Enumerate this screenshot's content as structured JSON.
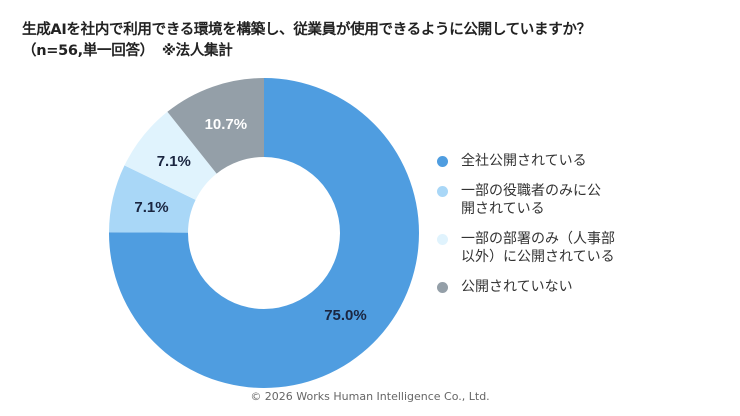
{
  "title": {
    "line1": "生成AIを社内で利用できる環境を構築し、従業員が使用できるように公開していますか？",
    "line2a": "（n=56,単一回答）",
    "line2b": "※法人集計"
  },
  "chart_data": {
    "type": "pie",
    "donut": true,
    "start": "top, clockwise",
    "legend_position": "right",
    "series": [
      {
        "name": "全社公開されている",
        "value": 75.0,
        "label": "75.0%",
        "color": "#4f9de0",
        "label_color": "#1a2540"
      },
      {
        "name": "一部の役職者のみに公開されている",
        "value": 7.1,
        "label": "7.1%",
        "color": "#a9d7f7",
        "label_color": "#1a2540"
      },
      {
        "name": "一部の部署のみ（人事部以外）に公開されている",
        "value": 7.1,
        "label": "7.1%",
        "color": "#e0f3fd",
        "label_color": "#1a2540"
      },
      {
        "name": "公開されていない",
        "value": 10.7,
        "label": "10.7%",
        "color": "#949fa8",
        "label_color": "#ffffff"
      }
    ]
  },
  "legend": [
    {
      "line1": "全社公開されている",
      "line2": ""
    },
    {
      "line1": "一部の役職者のみに公",
      "line2": "開されている"
    },
    {
      "line1": "一部の部署のみ（人事部",
      "line2": "以外）に公開されている"
    },
    {
      "line1": "公開されていない",
      "line2": ""
    }
  ],
  "footer": "© 2026 Works Human Intelligence Co., Ltd."
}
